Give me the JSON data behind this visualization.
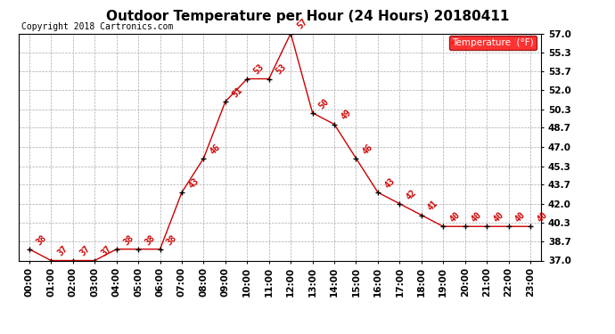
{
  "title": "Outdoor Temperature per Hour (24 Hours) 20180411",
  "copyright_text": "Copyright 2018 Cartronics.com",
  "legend_label": "Temperature  (°F)",
  "hours": [
    "00:00",
    "01:00",
    "02:00",
    "03:00",
    "04:00",
    "05:00",
    "06:00",
    "07:00",
    "08:00",
    "09:00",
    "10:00",
    "11:00",
    "12:00",
    "13:00",
    "14:00",
    "15:00",
    "16:00",
    "17:00",
    "18:00",
    "19:00",
    "20:00",
    "21:00",
    "22:00",
    "23:00"
  ],
  "temperatures": [
    38,
    37,
    37,
    37,
    38,
    38,
    38,
    43,
    46,
    51,
    53,
    53,
    57,
    50,
    49,
    46,
    43,
    42,
    41,
    40,
    40,
    40,
    40,
    40
  ],
  "line_color": "#cc0000",
  "marker_color": "#000000",
  "label_color": "#cc0000",
  "background_color": "#ffffff",
  "grid_color": "#aaaaaa",
  "ylim_min": 37.0,
  "ylim_max": 57.0,
  "yticks": [
    37.0,
    38.7,
    40.3,
    42.0,
    43.7,
    45.3,
    47.0,
    48.7,
    50.3,
    52.0,
    53.7,
    55.3,
    57.0
  ],
  "title_fontsize": 11,
  "label_fontsize": 7,
  "tick_fontsize": 7.5,
  "copyright_fontsize": 7,
  "legend_fontsize": 7.5
}
